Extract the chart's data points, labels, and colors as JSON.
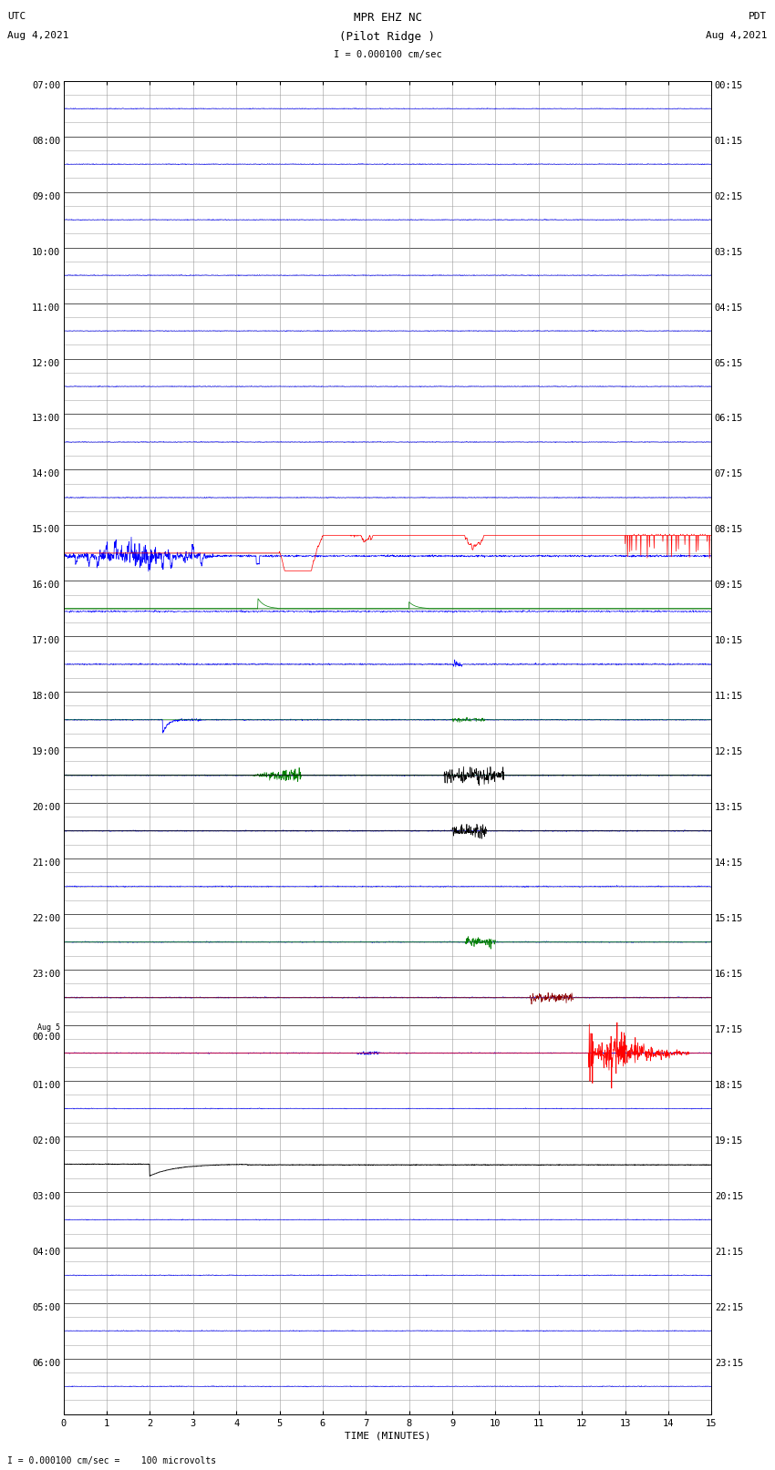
{
  "title_line1": "MPR EHZ NC",
  "title_line2": "(Pilot Ridge )",
  "scale_label": "I = 0.000100 cm/sec",
  "footer_label": "I = 0.000100 cm/sec =    100 microvolts",
  "utc_label": "UTC",
  "utc_date": "Aug 4,2021",
  "pdt_label": "PDT",
  "pdt_date": "Aug 4,2021",
  "xlabel": "TIME (MINUTES)",
  "xlim": [
    0,
    15
  ],
  "xticks": [
    0,
    1,
    2,
    3,
    4,
    5,
    6,
    7,
    8,
    9,
    10,
    11,
    12,
    13,
    14,
    15
  ],
  "fig_width": 8.5,
  "fig_height": 16.13,
  "dpi": 100,
  "background_color": "white",
  "grid_color": "#999999",
  "num_rows": 24,
  "sub_rows": 4,
  "left_labels": [
    "07:00",
    "08:00",
    "09:00",
    "10:00",
    "11:00",
    "12:00",
    "13:00",
    "14:00",
    "15:00",
    "16:00",
    "17:00",
    "18:00",
    "19:00",
    "20:00",
    "21:00",
    "22:00",
    "23:00",
    "Aug 5\n00:00",
    "01:00",
    "02:00",
    "03:00",
    "04:00",
    "05:00",
    "06:00"
  ],
  "right_labels": [
    "00:15",
    "01:15",
    "02:15",
    "03:15",
    "04:15",
    "05:15",
    "06:15",
    "07:15",
    "08:15",
    "09:15",
    "10:15",
    "11:15",
    "12:15",
    "13:15",
    "14:15",
    "15:15",
    "16:15",
    "17:15",
    "18:15",
    "19:15",
    "20:15",
    "21:15",
    "22:15",
    "23:15"
  ],
  "title_fontsize": 9,
  "label_fontsize": 8,
  "tick_fontsize": 7.5,
  "row_label_fontsize": 7.5
}
